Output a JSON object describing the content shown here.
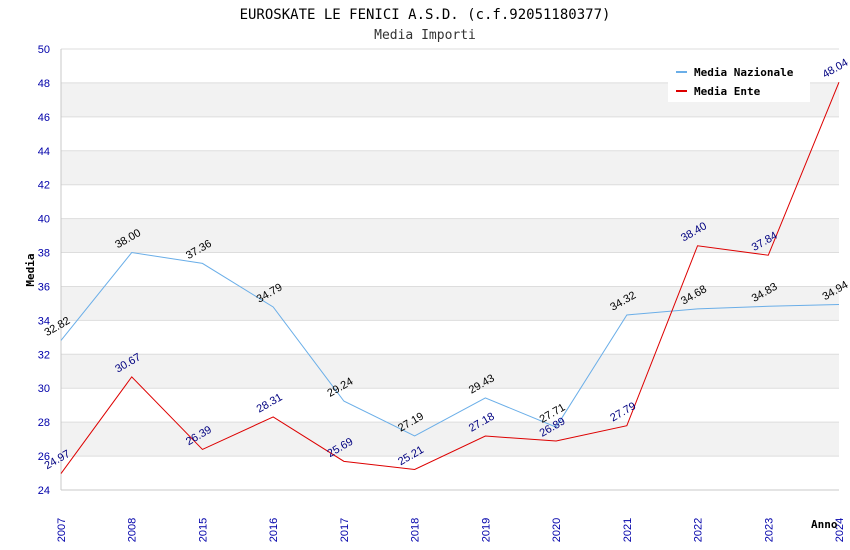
{
  "chart_data": {
    "type": "line",
    "title": "EUROSKATE LE FENICI A.S.D. (c.f.92051180377)",
    "subtitle": "Media Importi",
    "xlabel": "Anno",
    "ylabel": "Media",
    "ylim": [
      24,
      50
    ],
    "yticks": [
      24,
      26,
      28,
      30,
      32,
      34,
      36,
      38,
      40,
      42,
      44,
      46,
      48,
      50
    ],
    "categories": [
      "2007",
      "2008",
      "2015",
      "2016",
      "2017",
      "2018",
      "2019",
      "2020",
      "2021",
      "2022",
      "2023",
      "2024"
    ],
    "series": [
      {
        "name": "Media Nazionale",
        "color": "#6aaee8",
        "label_color": "#000000",
        "values": [
          32.82,
          38.0,
          37.36,
          34.79,
          29.24,
          27.19,
          29.43,
          27.71,
          34.32,
          34.68,
          34.83,
          34.94
        ],
        "labels": [
          "32.82",
          "38.00",
          "37.36",
          "34.79",
          "29.24",
          "27.19",
          "29.43",
          "27.71",
          "34.32",
          "34.68",
          "34.83",
          "34.94"
        ]
      },
      {
        "name": "Media Ente",
        "color": "#dd0000",
        "label_color": "#000080",
        "values": [
          24.97,
          30.67,
          26.39,
          28.31,
          25.69,
          25.21,
          27.18,
          26.89,
          27.79,
          38.4,
          37.84,
          48.04
        ],
        "labels": [
          "24.97",
          "30.67",
          "26.39",
          "28.31",
          "25.69",
          "25.21",
          "27.18",
          "26.89",
          "27.79",
          "38.40",
          "37.84",
          "48.04"
        ]
      }
    ],
    "legend_position": "top-right",
    "grid": true
  }
}
